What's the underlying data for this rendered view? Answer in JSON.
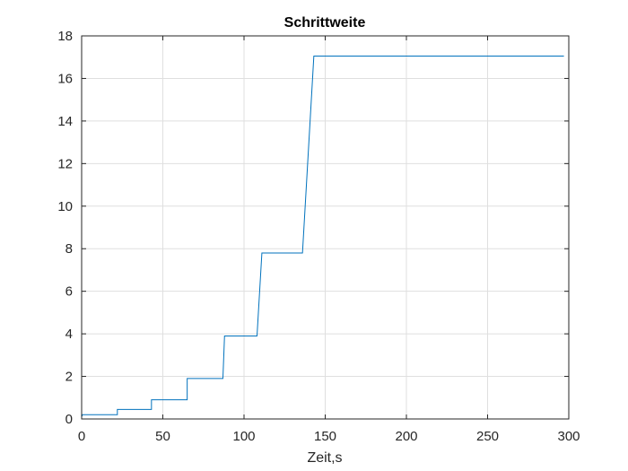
{
  "chart_data": {
    "type": "line",
    "title": "Schrittweite",
    "xlabel": "Zeit,s",
    "ylabel": "",
    "xlim": [
      0,
      300
    ],
    "ylim": [
      0,
      18
    ],
    "xticks": [
      0,
      50,
      100,
      150,
      200,
      250,
      300
    ],
    "yticks": [
      0,
      2,
      4,
      6,
      8,
      10,
      12,
      14,
      16,
      18
    ],
    "grid": true,
    "legend": "none",
    "series": [
      {
        "color": "#0072BD",
        "x": [
          0,
          0.5,
          22,
          22,
          43,
          43,
          65,
          65,
          87,
          88,
          108,
          111,
          136,
          143,
          297
        ],
        "y": [
          0.1,
          0.2,
          0.2,
          0.45,
          0.45,
          0.9,
          0.9,
          1.9,
          1.9,
          3.9,
          3.9,
          7.8,
          7.8,
          17.05,
          17.05
        ]
      }
    ]
  }
}
